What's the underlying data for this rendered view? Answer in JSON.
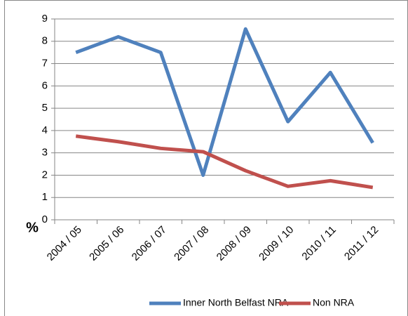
{
  "chart_data": {
    "type": "line",
    "y_label": "%",
    "categories": [
      "2004 / 05",
      "2005 / 06",
      "2006 / 07",
      "2007 / 08",
      "2008 / 09",
      "2009 / 10",
      "2010 / 11",
      "2011 / 12"
    ],
    "series": [
      {
        "name": "Inner North Belfast NRA",
        "color": "#4f81bd",
        "values": [
          7.5,
          8.2,
          7.5,
          2.0,
          8.55,
          4.4,
          6.6,
          3.45
        ]
      },
      {
        "name": "Non NRA",
        "color": "#c0504d",
        "values": [
          3.75,
          3.5,
          3.2,
          3.05,
          2.2,
          1.5,
          1.75,
          1.45
        ]
      }
    ],
    "ylim": [
      0,
      9
    ],
    "yticks": [
      0,
      1,
      2,
      3,
      4,
      5,
      6,
      7,
      8,
      9
    ],
    "grid": true,
    "legend": "bottom"
  }
}
